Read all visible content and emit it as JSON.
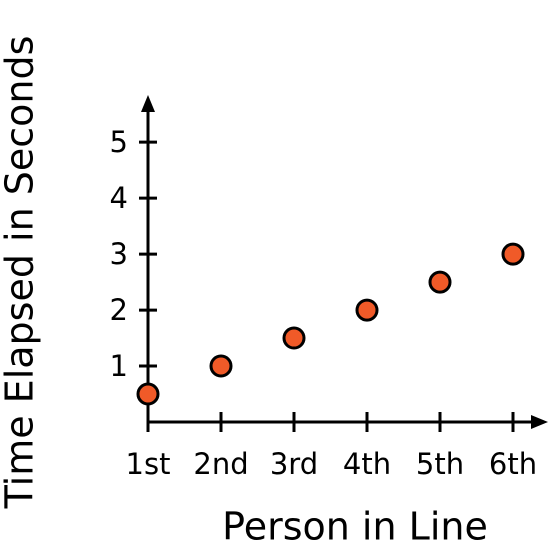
{
  "chart_data": {
    "type": "scatter",
    "x_label": "Person in Line",
    "y_label": "Time Elapsed in Seconds",
    "categories": [
      "1st",
      "2nd",
      "3rd",
      "4th",
      "5th",
      "6th"
    ],
    "values": [
      0.5,
      1,
      1.5,
      2,
      2.5,
      3
    ],
    "color": "#f05a28",
    "ylim": [
      0,
      5.7
    ],
    "yticks": [
      1,
      2,
      3,
      4,
      5
    ],
    "grid": false
  }
}
